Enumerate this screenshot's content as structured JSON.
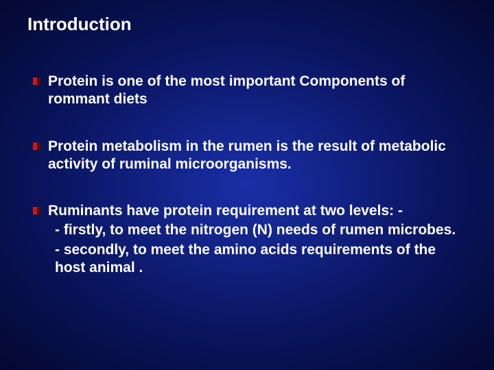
{
  "slide": {
    "background_gradient": [
      "#1a2fa8",
      "#0a1560",
      "#040830"
    ],
    "text_color": "#ffffff",
    "title": "Introduction",
    "title_fontsize": 26,
    "body_fontsize": 21,
    "bullet_marker_colors": [
      "#c61a1a",
      "#5a0a0a"
    ],
    "bullets": [
      {
        "text": "Protein is one of the most important Components of rommant diets"
      },
      {
        "text": "Protein metabolism in the rumen is the result of metabolic activity of ruminal microorganisms."
      },
      {
        "text": "Ruminants have protein requirement at two levels: -",
        "subs": [
          " - firstly, to meet the nitrogen (N) needs of rumen microbes.",
          " - secondly, to meet the amino acids requirements of the host animal ."
        ]
      }
    ]
  }
}
